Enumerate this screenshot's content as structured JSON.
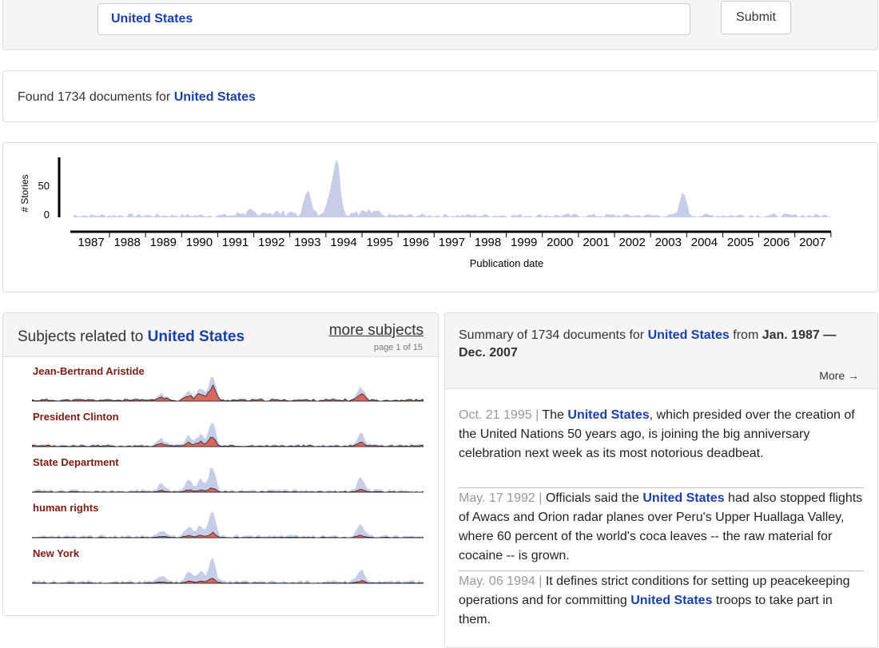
{
  "search": {
    "value": "United States",
    "submit_label": "Submit"
  },
  "found": {
    "prefix": "Found 1734 documents for",
    "term": "United States"
  },
  "timeline": {
    "ylabel": "# Stories",
    "yticks": [
      "50",
      "0"
    ],
    "xlabel": "Publication date",
    "years": [
      "1987",
      "1988",
      "1989",
      "1990",
      "1991",
      "1992",
      "1993",
      "1994",
      "1995",
      "1996",
      "1997",
      "1998",
      "1999",
      "2000",
      "2001",
      "2002",
      "2003",
      "2004",
      "2005",
      "2006",
      "2007"
    ],
    "fill_color": "#c7cde6"
  },
  "chart_data": {
    "type": "area",
    "xlabel": "Publication date",
    "ylabel": "# Stories",
    "x_years": [
      1987,
      1988,
      1989,
      1990,
      1991,
      1992,
      1993,
      1994,
      1995,
      1996,
      1997,
      1998,
      1999,
      2000,
      2001,
      2002,
      2003,
      2004,
      2005,
      2006,
      2007
    ],
    "peaks": [
      {
        "year": 1993.5,
        "value": 40
      },
      {
        "year": 1994.1,
        "value": 30
      },
      {
        "year": 1994.3,
        "value": 90
      },
      {
        "year": 2003.9,
        "value": 38
      }
    ],
    "ytick": 50
  },
  "subjects": {
    "title_prefix": "Subjects related to",
    "term": "United States",
    "more_label": "more subjects",
    "page_info": "page 1 of 15",
    "items": [
      {
        "label": "Jean-Bertrand Aristide"
      },
      {
        "label": "President Clinton"
      },
      {
        "label": "State Department"
      },
      {
        "label": "human rights"
      },
      {
        "label": "New York"
      }
    ],
    "colors": {
      "background": "#c7cde6",
      "highlight": "#d9675c",
      "line": "#222222"
    }
  },
  "summary": {
    "prefix": "Summary of 1734 documents for",
    "term": "United States",
    "mid": "from",
    "range": "Jan. 1987 — Dec. 2007",
    "more_label": "More →",
    "docs": [
      {
        "date": "Oct. 21 1995 |",
        "pre": "The",
        "term": "United States",
        "post": ", which presided over the creation of the United Nations 50 years ago, is joining the big anniversary celebration next week as its most notorious deadbeat."
      },
      {
        "date": "May. 17 1992 |",
        "pre": "Officials said the",
        "term": "United States",
        "post": "had also stopped flights of Awacs and Orion radar planes over Peru's Upper Huallaga Valley, where 60 percent of the world's coca leaves -- the raw material for cocaine -- is grown."
      },
      {
        "date": "May. 06 1994 |",
        "pre": "It defines strict conditions for setting up peacekeeping operations and for committing",
        "term": "United States",
        "post": "troops to take part in them."
      }
    ]
  }
}
